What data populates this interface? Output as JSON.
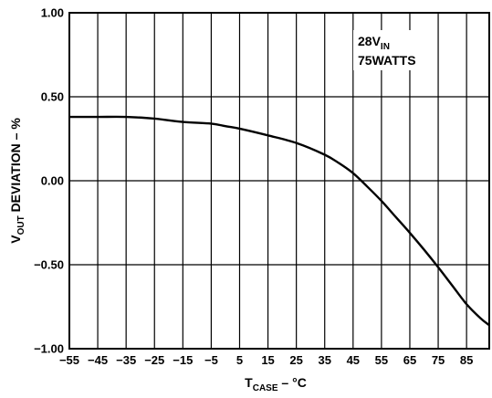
{
  "chart_data": {
    "type": "line",
    "title": "",
    "xlabel": {
      "main": "T",
      "sub": "CASE",
      "rest": " – °C"
    },
    "ylabel": {
      "main": "V",
      "sub": "OUT",
      "rest": " DEVIATION – %"
    },
    "xlim": [
      -55,
      93
    ],
    "ylim": [
      -1.0,
      1.0
    ],
    "x_ticks": [
      -55,
      -45,
      -35,
      -25,
      -15,
      -5,
      5,
      15,
      25,
      35,
      45,
      55,
      65,
      75,
      85
    ],
    "x_tick_labels": [
      "−55",
      "−45",
      "−35",
      "−25",
      "−15",
      "−5",
      "5",
      "15",
      "25",
      "35",
      "45",
      "55",
      "65",
      "75",
      "85"
    ],
    "y_ticks": [
      1.0,
      0.5,
      0.0,
      -0.5,
      -1.0
    ],
    "y_tick_labels": [
      "1.00",
      "0.50",
      "0.00",
      "−0.50",
      "−1.00"
    ],
    "grid": true,
    "annotation": {
      "line1_main": "28V",
      "line1_sub": "IN",
      "line2": "75WATTS"
    },
    "series": [
      {
        "x": [
          -55,
          -45,
          -35,
          -25,
          -15,
          -5,
          0,
          5,
          15,
          25,
          35,
          40,
          45,
          50,
          55,
          60,
          65,
          70,
          75,
          80,
          85,
          90,
          93
        ],
        "y": [
          0.38,
          0.38,
          0.38,
          0.37,
          0.35,
          0.34,
          0.325,
          0.31,
          0.27,
          0.225,
          0.155,
          0.105,
          0.045,
          -0.035,
          -0.12,
          -0.215,
          -0.31,
          -0.41,
          -0.515,
          -0.625,
          -0.735,
          -0.82,
          -0.86
        ]
      }
    ]
  }
}
